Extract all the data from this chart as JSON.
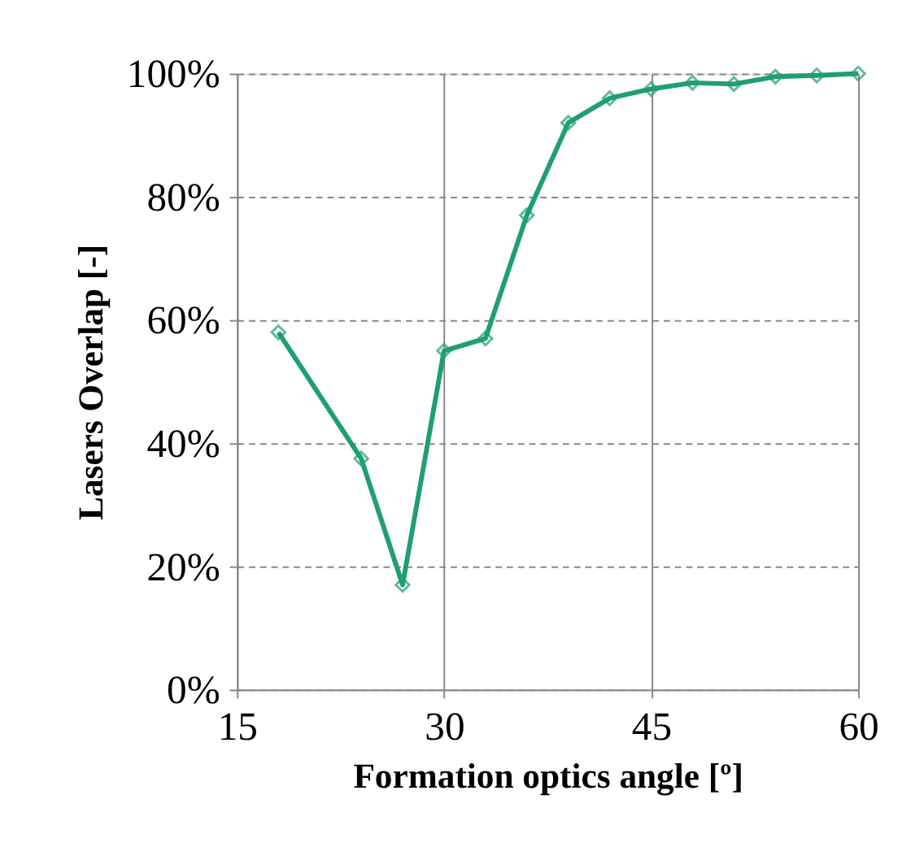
{
  "chart_data": {
    "type": "line",
    "xlabel": "Formation optics angle [º]",
    "ylabel": "Lasers Overlap [-]",
    "x": [
      18,
      24,
      27,
      30,
      33,
      36,
      39,
      42,
      45,
      48,
      51,
      54,
      57,
      60
    ],
    "series": [
      {
        "color": "#1f9e78",
        "values": [
          58,
          37.5,
          17,
          55,
          57,
          77,
          92,
          96,
          97.5,
          98.5,
          98.3,
          99.5,
          99.7,
          100
        ]
      }
    ],
    "xlim": [
      15,
      60
    ],
    "xticks": [
      15,
      30,
      45,
      60
    ],
    "ylim": [
      0,
      100
    ],
    "yticks": [
      {
        "value": 0,
        "label": "0%"
      },
      {
        "value": 20,
        "label": "20%"
      },
      {
        "value": 40,
        "label": "40%"
      },
      {
        "value": 60,
        "label": "60%"
      },
      {
        "value": 80,
        "label": "80%"
      },
      {
        "value": 100,
        "label": "100%"
      }
    ],
    "grid": true,
    "marker": "diamond",
    "line_style": "solid"
  }
}
